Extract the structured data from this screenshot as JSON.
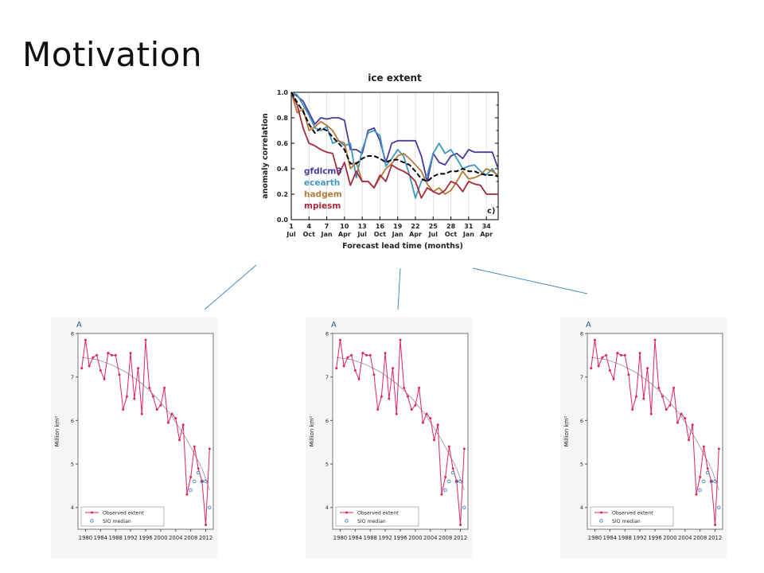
{
  "slide": {
    "title": "Motivation"
  },
  "colors": {
    "gfdlcm3": "#4b3a9a",
    "ecearth": "#3f97bd",
    "hadgem": "#b47a38",
    "mpiesm": "#a52a3a",
    "mean": "#000000",
    "observed": "#e0245e",
    "sio": "#2a7ab0",
    "trend": "#999999",
    "connector": "#4a8ac0"
  },
  "chart_data": [
    {
      "type": "line",
      "title": "ice extent",
      "xlabel": "Forecast lead time (months)",
      "ylabel": "anomaly correlation",
      "panel_label": "c)",
      "xlim": [
        1,
        36
      ],
      "ylim": [
        0,
        1
      ],
      "yticks": [
        "0.0",
        "0.2",
        "0.4",
        "0.6",
        "0.8",
        "1.0"
      ],
      "xticks": [
        {
          "x": 1,
          "num": "1",
          "month": "Jul"
        },
        {
          "x": 4,
          "num": "4",
          "month": "Oct"
        },
        {
          "x": 7,
          "num": "7",
          "month": "Jan"
        },
        {
          "x": 10,
          "num": "10",
          "month": "Apr"
        },
        {
          "x": 13,
          "num": "13",
          "month": "Jul"
        },
        {
          "x": 16,
          "num": "16",
          "month": "Oct"
        },
        {
          "x": 19,
          "num": "19",
          "month": "Jan"
        },
        {
          "x": 22,
          "num": "22",
          "month": "Apr"
        },
        {
          "x": 25,
          "num": "25",
          "month": "Jul"
        },
        {
          "x": 28,
          "num": "28",
          "month": "Oct"
        },
        {
          "x": 31,
          "num": "31",
          "month": "Jan"
        },
        {
          "x": 34,
          "num": "34",
          "month": "Apr"
        }
      ],
      "legend": [
        "gfdlcm3",
        "ecearth",
        "hadgem",
        "mpiesm"
      ],
      "legend_position": "bottom-left",
      "x": [
        1,
        2,
        3,
        4,
        5,
        6,
        7,
        8,
        9,
        10,
        11,
        12,
        13,
        14,
        15,
        16,
        17,
        18,
        19,
        20,
        21,
        22,
        23,
        24,
        25,
        26,
        27,
        28,
        29,
        30,
        31,
        32,
        33,
        34,
        35,
        36
      ],
      "series": [
        {
          "name": "gfdlcm3",
          "color_key": "gfdlcm3",
          "values": [
            1.0,
            0.97,
            0.93,
            0.84,
            0.75,
            0.8,
            0.79,
            0.8,
            0.8,
            0.78,
            0.55,
            0.55,
            0.52,
            0.7,
            0.72,
            0.62,
            0.45,
            0.6,
            0.62,
            0.62,
            0.62,
            0.62,
            0.5,
            0.3,
            0.52,
            0.45,
            0.43,
            0.5,
            0.52,
            0.48,
            0.55,
            0.53,
            0.53,
            0.53,
            0.53,
            0.4
          ]
        },
        {
          "name": "ecearth",
          "color_key": "ecearth",
          "values": [
            1.0,
            0.98,
            0.9,
            0.82,
            0.72,
            0.7,
            0.73,
            0.6,
            0.62,
            0.58,
            0.6,
            0.33,
            0.55,
            0.68,
            0.7,
            0.66,
            0.42,
            0.48,
            0.55,
            0.5,
            0.35,
            0.17,
            0.3,
            0.35,
            0.52,
            0.6,
            0.52,
            0.55,
            0.48,
            0.4,
            0.42,
            0.43,
            0.38,
            0.35,
            0.4,
            0.33
          ]
        },
        {
          "name": "hadgem",
          "color_key": "hadgem",
          "values": [
            1.0,
            0.84,
            0.87,
            0.7,
            0.73,
            0.77,
            0.74,
            0.7,
            0.62,
            0.6,
            0.4,
            0.45,
            0.3,
            0.3,
            0.25,
            0.33,
            0.4,
            0.44,
            0.5,
            0.52,
            0.48,
            0.43,
            0.38,
            0.28,
            0.22,
            0.25,
            0.2,
            0.23,
            0.3,
            0.38,
            0.32,
            0.33,
            0.35,
            0.4,
            0.38,
            0.35
          ]
        },
        {
          "name": "mpiesm",
          "color_key": "mpiesm",
          "values": [
            1.0,
            0.9,
            0.72,
            0.6,
            0.58,
            0.55,
            0.53,
            0.52,
            0.35,
            0.45,
            0.27,
            0.38,
            0.3,
            0.3,
            0.25,
            0.35,
            0.3,
            0.43,
            0.4,
            0.38,
            0.35,
            0.3,
            0.17,
            0.25,
            0.22,
            0.2,
            0.23,
            0.3,
            0.28,
            0.22,
            0.3,
            0.28,
            0.27,
            0.2,
            0.2,
            0.2
          ]
        },
        {
          "name": "",
          "color_key": "mean",
          "dashed": true,
          "values": [
            1.0,
            0.92,
            0.85,
            0.75,
            0.68,
            0.72,
            0.7,
            0.65,
            0.6,
            0.55,
            0.44,
            0.44,
            0.48,
            0.5,
            0.5,
            0.48,
            0.45,
            0.47,
            0.47,
            0.45,
            0.43,
            0.38,
            0.32,
            0.3,
            0.34,
            0.36,
            0.36,
            0.38,
            0.38,
            0.4,
            0.38,
            0.38,
            0.36,
            0.35,
            0.35,
            0.34
          ]
        }
      ]
    },
    {
      "type": "line",
      "panel_label": "A",
      "ylabel": "Million km²",
      "ylim": [
        3.5,
        8.0
      ],
      "xlim": [
        1978,
        2014
      ],
      "yticks": [
        4,
        5,
        6,
        7,
        8
      ],
      "xticks": [
        1980,
        1984,
        1988,
        1992,
        1996,
        2000,
        2004,
        2008,
        2012
      ],
      "legend": [
        "Observed extent",
        "SIO median"
      ],
      "legend_position": "bottom-left",
      "series": [
        {
          "name": "Observed extent",
          "color_key": "observed",
          "x": [
            1979,
            1980,
            1981,
            1982,
            1983,
            1984,
            1985,
            1986,
            1987,
            1988,
            1989,
            1990,
            1991,
            1992,
            1993,
            1994,
            1995,
            1996,
            1997,
            1998,
            1999,
            2000,
            2001,
            2002,
            2003,
            2004,
            2005,
            2006,
            2007,
            2008,
            2009,
            2010,
            2011,
            2012,
            2013
          ],
          "values": [
            7.2,
            7.85,
            7.25,
            7.45,
            7.5,
            7.15,
            6.95,
            7.55,
            7.5,
            7.5,
            7.05,
            6.25,
            6.55,
            7.55,
            6.5,
            7.2,
            6.15,
            7.85,
            6.75,
            6.55,
            6.25,
            6.35,
            6.75,
            5.95,
            6.15,
            6.05,
            5.55,
            5.9,
            4.3,
            4.7,
            5.4,
            4.9,
            4.6,
            3.6,
            5.35
          ]
        },
        {
          "name": "SIO median",
          "color_key": "sio",
          "markers_only": true,
          "x": [
            2008,
            2009,
            2010,
            2011,
            2012,
            2013
          ],
          "values": [
            4.4,
            4.6,
            4.8,
            4.6,
            4.6,
            4.0
          ]
        },
        {
          "name": "",
          "color_key": "trend",
          "trend": true,
          "x": [
            1979,
            1983,
            1987,
            1991,
            1995,
            1999,
            2003,
            2007,
            2011,
            2013
          ],
          "values": [
            7.45,
            7.4,
            7.28,
            7.1,
            6.85,
            6.52,
            6.1,
            5.55,
            4.9,
            4.4
          ]
        }
      ]
    }
  ]
}
